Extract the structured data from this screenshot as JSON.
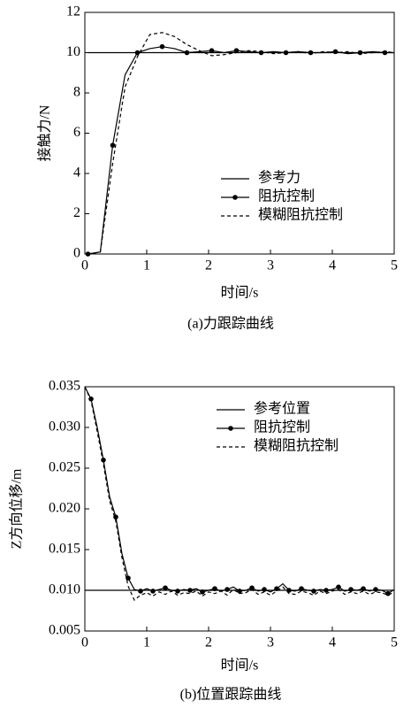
{
  "chart_data": [
    {
      "type": "line",
      "xlabel": "时间/s",
      "ylabel": "接触力/N",
      "caption": "(a)力跟踪曲线",
      "x": [
        0.05,
        0.25,
        0.45,
        0.65,
        0.85,
        1.05,
        1.25,
        1.45,
        1.65,
        1.85,
        2.05,
        2.25,
        2.45,
        2.65,
        2.85,
        3.05,
        3.25,
        3.45,
        3.65,
        3.85,
        4.05,
        4.25,
        4.45,
        4.65,
        4.85,
        5
      ],
      "series": [
        {
          "name": "参考力",
          "color": "#000000",
          "linestyle": "solid",
          "values": [
            10,
            10,
            10,
            10,
            10,
            10,
            10,
            10,
            10,
            10,
            10,
            10,
            10,
            10,
            10,
            10,
            10,
            10,
            10,
            10,
            10,
            10,
            10,
            10,
            10,
            10
          ]
        },
        {
          "name": "阻抗控制",
          "color": "#000000",
          "linestyle": "solid",
          "marker": "o",
          "markevery": [
            0,
            2
          ],
          "values": [
            0,
            0.1,
            5.4,
            8.9,
            10,
            10.2,
            10.3,
            10.2,
            10,
            10.05,
            10.1,
            10,
            10.1,
            10.05,
            10,
            10.05,
            10,
            10.05,
            10,
            10,
            10.05,
            9.95,
            10,
            10.05,
            10,
            10
          ]
        },
        {
          "name": "模糊阻抗控制",
          "color": "#000000",
          "linestyle": "dashed",
          "values": [
            0,
            0.1,
            4.5,
            8.3,
            9.8,
            10.9,
            11,
            10.8,
            10.4,
            10.1,
            9.85,
            9.9,
            10,
            10.1,
            10.05,
            9.95,
            10,
            10.05,
            9.95,
            10.05,
            10,
            10.05,
            9.95,
            10,
            10.05,
            10
          ]
        }
      ],
      "xlim": [
        0,
        5
      ],
      "xticks": [
        0,
        1,
        2,
        3,
        4,
        5
      ],
      "ylim": [
        0,
        12
      ],
      "yticks": [
        0,
        2,
        4,
        6,
        8,
        10,
        12
      ],
      "grid": false,
      "legend": "right"
    },
    {
      "type": "line",
      "xlabel": "时间/s",
      "ylabel": "Z方向位移/m",
      "caption": "(b)位置跟踪曲线",
      "x": [
        0,
        0.1,
        0.2,
        0.3,
        0.4,
        0.5,
        0.6,
        0.7,
        0.8,
        0.9,
        1,
        1.1,
        1.2,
        1.3,
        1.4,
        1.5,
        1.6,
        1.7,
        1.8,
        1.9,
        2,
        2.1,
        2.2,
        2.3,
        2.4,
        2.5,
        2.6,
        2.7,
        2.8,
        2.9,
        3,
        3.1,
        3.2,
        3.3,
        3.4,
        3.5,
        3.6,
        3.7,
        3.8,
        3.9,
        4,
        4.1,
        4.2,
        4.3,
        4.4,
        4.5,
        4.6,
        4.7,
        4.8,
        4.9,
        5
      ],
      "series": [
        {
          "name": "参考位置",
          "color": "#000000",
          "linestyle": "solid",
          "values": [
            0.01,
            0.01,
            0.01,
            0.01,
            0.01,
            0.01,
            0.01,
            0.01,
            0.01,
            0.01,
            0.01,
            0.01,
            0.01,
            0.01,
            0.01,
            0.01,
            0.01,
            0.01,
            0.01,
            0.01,
            0.01,
            0.01,
            0.01,
            0.01,
            0.01,
            0.01,
            0.01,
            0.01,
            0.01,
            0.01,
            0.01,
            0.01,
            0.01,
            0.01,
            0.01,
            0.01,
            0.01,
            0.01,
            0.01,
            0.01,
            0.01,
            0.01,
            0.01,
            0.01,
            0.01,
            0.01,
            0.01,
            0.01,
            0.01,
            0.01,
            0.01
          ]
        },
        {
          "name": "阻抗控制",
          "color": "#000000",
          "linestyle": "solid",
          "marker": "o",
          "markevery": [
            1,
            2
          ],
          "values": [
            0.035,
            0.0335,
            0.03,
            0.026,
            0.0215,
            0.019,
            0.0145,
            0.0115,
            0.0101,
            0.0099,
            0.0102,
            0.0099,
            0.0101,
            0.0103,
            0.01,
            0.0099,
            0.0101,
            0.01,
            0.0102,
            0.0098,
            0.01,
            0.0102,
            0.0099,
            0.0101,
            0.0104,
            0.0099,
            0.01,
            0.0103,
            0.0099,
            0.0101,
            0.0098,
            0.0102,
            0.0108,
            0.01,
            0.0099,
            0.0102,
            0.01,
            0.0099,
            0.0101,
            0.01,
            0.0101,
            0.0104,
            0.0099,
            0.0101,
            0.01,
            0.0102,
            0.0099,
            0.0101,
            0.01,
            0.0096,
            0.0101
          ]
        },
        {
          "name": "模糊阻抗控制",
          "color": "#000000",
          "linestyle": "dashed",
          "values": [
            0.035,
            0.0333,
            0.0295,
            0.0255,
            0.021,
            0.0185,
            0.014,
            0.0105,
            0.0088,
            0.0094,
            0.0097,
            0.0093,
            0.0098,
            0.0095,
            0.0099,
            0.0094,
            0.0097,
            0.0096,
            0.0099,
            0.0093,
            0.0098,
            0.0096,
            0.0099,
            0.0094,
            0.0101,
            0.0096,
            0.0097,
            0.0101,
            0.0095,
            0.0098,
            0.0094,
            0.0099,
            0.0104,
            0.0096,
            0.0095,
            0.0099,
            0.0097,
            0.0094,
            0.0099,
            0.0096,
            0.0099,
            0.0101,
            0.0095,
            0.0098,
            0.0096,
            0.0099,
            0.0095,
            0.0098,
            0.0097,
            0.0094,
            0.0098
          ]
        }
      ],
      "xlim": [
        0,
        5
      ],
      "xticks": [
        0,
        1,
        2,
        3,
        4,
        5
      ],
      "ylim": [
        0.005,
        0.035
      ],
      "yticks": [
        0.005,
        {
          "value": 0.01,
          "label": "0.010"
        },
        0.015,
        {
          "value": 0.02,
          "label": "0.020"
        },
        0.025,
        {
          "value": 0.03,
          "label": "0.030"
        },
        0.035
      ],
      "grid": false,
      "legend": "right"
    }
  ]
}
